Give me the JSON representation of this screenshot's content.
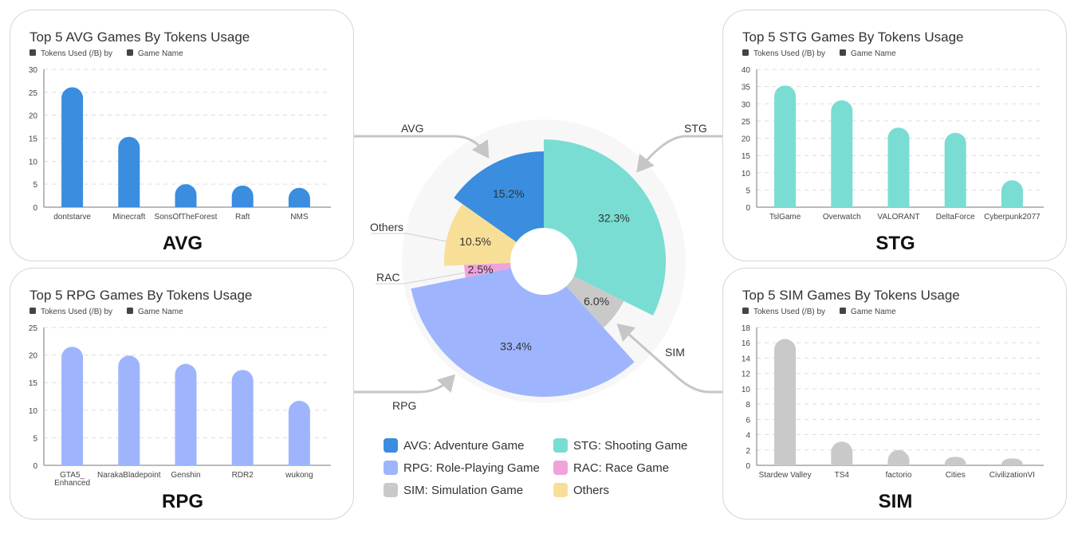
{
  "chart_data": [
    {
      "type": "bar",
      "key": "avg",
      "title": "Top 5 AVG Games By Tokens Usage",
      "legend": {
        "y": "Tokens Used (/B) by",
        "x": "Game Name"
      },
      "label": "AVG",
      "categories": [
        "dontstarve",
        "Minecraft",
        "SonsOfTheForest",
        "Raft",
        "NMS"
      ],
      "values": [
        26.1,
        15.3,
        5.0,
        4.7,
        4.2
      ],
      "ylim": [
        0,
        30
      ],
      "yticks": [
        0,
        5,
        10,
        15,
        20,
        25,
        30
      ],
      "color": "#3a8ddf",
      "grid": true
    },
    {
      "type": "bar",
      "key": "stg",
      "title": "Top 5 STG Games By Tokens Usage",
      "legend": {
        "y": "Tokens Used (/B) by",
        "x": "Game Name"
      },
      "label": "STG",
      "categories": [
        "TslGame",
        "Overwatch",
        "VALORANT",
        "DeltaForce",
        "Cyberpunk2077"
      ],
      "values": [
        35.3,
        31.0,
        23.1,
        21.6,
        7.8
      ],
      "ylim": [
        0,
        40
      ],
      "yticks": [
        0,
        5,
        10,
        15,
        20,
        25,
        30,
        35,
        40
      ],
      "color": "#79ddd3",
      "grid": true
    },
    {
      "type": "bar",
      "key": "rpg",
      "title": "Top 5 RPG Games By Tokens Usage",
      "legend": {
        "y": "Tokens Used (/B) by",
        "x": "Game Name"
      },
      "label": "RPG",
      "categories": [
        "GTA5_\nEnhanced",
        "NarakaBladepoint",
        "Genshin",
        "RDR2",
        "wukong"
      ],
      "values": [
        21.5,
        19.9,
        18.4,
        17.3,
        11.7
      ],
      "ylim": [
        0,
        25
      ],
      "yticks": [
        0,
        5,
        10,
        15,
        20,
        25
      ],
      "color": "#9eb5fd",
      "grid": true
    },
    {
      "type": "bar",
      "key": "sim",
      "title": "Top 5 SIM Games By Tokens Usage",
      "legend": {
        "y": "Tokens Used (/B) by",
        "x": "Game Name"
      },
      "label": "SIM",
      "categories": [
        "Stardew Valley",
        "TS4",
        "factorio",
        "Cities",
        "CivilizationVI"
      ],
      "values": [
        16.5,
        3.1,
        2.0,
        1.1,
        0.9
      ],
      "ylim": [
        0,
        18
      ],
      "yticks": [
        0,
        2,
        4,
        6,
        8,
        10,
        12,
        14,
        16,
        18
      ],
      "color": "#c9c9c9",
      "grid": true
    },
    {
      "type": "pie",
      "key": "genre",
      "slices": [
        {
          "key": "STG",
          "value": 32.3,
          "label": "32.3%",
          "color": "#79ddd3"
        },
        {
          "key": "SIM",
          "value": 6.0,
          "label": "6.0%",
          "color": "#c9c9c9"
        },
        {
          "key": "RPG",
          "value": 33.4,
          "label": "33.4%",
          "color": "#9eb5fd"
        },
        {
          "key": "RAC",
          "value": 2.5,
          "label": "2.5%",
          "color": "#f0a3d9"
        },
        {
          "key": "Others",
          "value": 10.5,
          "label": "10.5%",
          "color": "#f8df98"
        },
        {
          "key": "AVG",
          "value": 15.2,
          "label": "15.2%",
          "color": "#3a8ddf"
        }
      ],
      "callouts": {
        "AVG": "AVG",
        "STG": "STG",
        "RPG": "RPG",
        "SIM": "SIM",
        "Others": "Others",
        "RAC": "RAC"
      },
      "legend": [
        {
          "label": "AVG: Adventure Game",
          "color": "#3a8ddf"
        },
        {
          "label": "STG: Shooting Game",
          "color": "#79ddd3"
        },
        {
          "label": "RPG: Role-Playing Game",
          "color": "#9eb5fd"
        },
        {
          "label": "RAC: Race Game",
          "color": "#f0a3d9"
        },
        {
          "label": "SIM: Simulation Game",
          "color": "#c9c9c9"
        },
        {
          "label": "Others",
          "color": "#f8df98"
        }
      ]
    }
  ]
}
